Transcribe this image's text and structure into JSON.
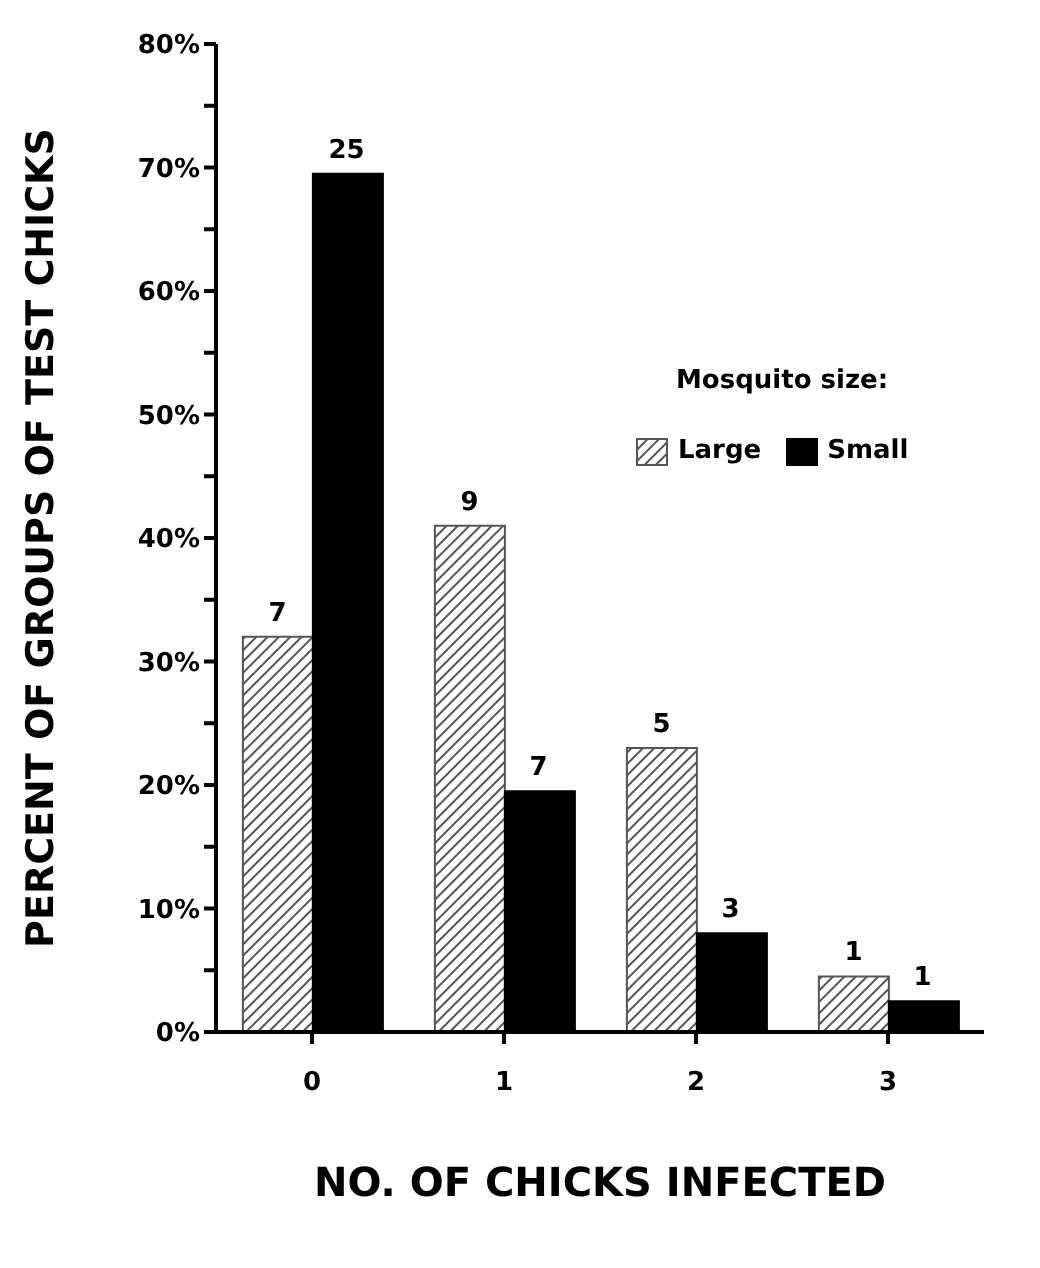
{
  "chart_data": {
    "type": "bar",
    "xlabel": "NO. OF CHICKS INFECTED",
    "ylabel": "PERCENT OF GROUPS OF TEST CHICKS",
    "legend_title": "Mosquito size:",
    "legend": "right",
    "categories": [
      "0",
      "1",
      "2",
      "3"
    ],
    "series": [
      {
        "name": "Large",
        "color": "#555555",
        "values": [
          32,
          41,
          23,
          4.5
        ]
      },
      {
        "name": "Small",
        "color": "#000000",
        "values": [
          69.5,
          19.5,
          8,
          2.5
        ]
      }
    ],
    "annotations": [
      {
        "text": "7",
        "x": "0",
        "y": 32
      },
      {
        "text": "9",
        "x": "1",
        "y": 41
      },
      {
        "text": "5",
        "x": "2",
        "y": 23
      },
      {
        "text": "1",
        "x": "3",
        "y": 4.5
      },
      {
        "text": "25",
        "x": "0",
        "y": 69.5
      },
      {
        "text": "7",
        "x": "1",
        "y": 19.5
      },
      {
        "text": "3",
        "x": "2",
        "y": 8
      },
      {
        "text": "1",
        "x": "3",
        "y": 2.5
      }
    ],
    "ylim": [
      0,
      80
    ],
    "yticks": [
      {
        "value": 0,
        "label": "0%"
      },
      {
        "value": 5,
        "label": null
      },
      {
        "value": 10,
        "label": "10%"
      },
      {
        "value": 15,
        "label": null
      },
      {
        "value": 20,
        "label": "20%"
      },
      {
        "value": 25,
        "label": null
      },
      {
        "value": 30,
        "label": "30%"
      },
      {
        "value": 35,
        "label": null
      },
      {
        "value": 40,
        "label": "40%"
      },
      {
        "value": 45,
        "label": null
      },
      {
        "value": 50,
        "label": "50%"
      },
      {
        "value": 55,
        "label": null
      },
      {
        "value": 60,
        "label": "60%"
      },
      {
        "value": 65,
        "label": null
      },
      {
        "value": 70,
        "label": "70%"
      },
      {
        "value": 75,
        "label": null
      },
      {
        "value": 80,
        "label": "80%"
      }
    ],
    "grid": false
  }
}
